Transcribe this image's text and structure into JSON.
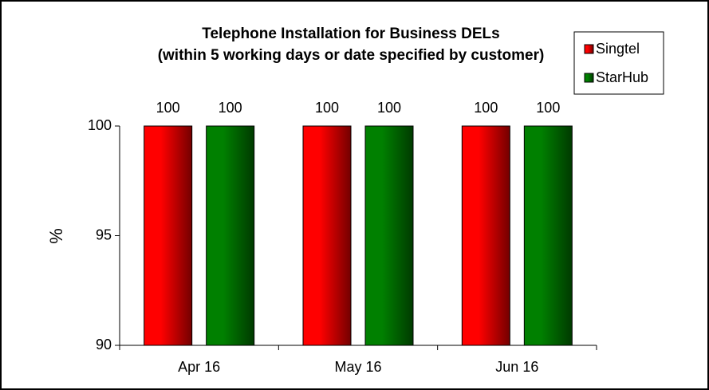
{
  "chart_data": {
    "type": "bar",
    "title": "Telephone Installation for Business DELs",
    "subtitle": "(within 5 working days or date specified by customer)",
    "y_label": "%",
    "categories": [
      "Apr 16",
      "May 16",
      "Jun 16"
    ],
    "series": [
      {
        "name": "Singtel",
        "color": "#ff0000",
        "values": [
          100,
          100,
          100
        ]
      },
      {
        "name": "StarHub",
        "color": "#008000",
        "values": [
          100,
          100,
          100
        ]
      }
    ],
    "ylim": [
      90,
      100
    ],
    "yticks": [
      90,
      95,
      100
    ],
    "legend": "top-right"
  }
}
